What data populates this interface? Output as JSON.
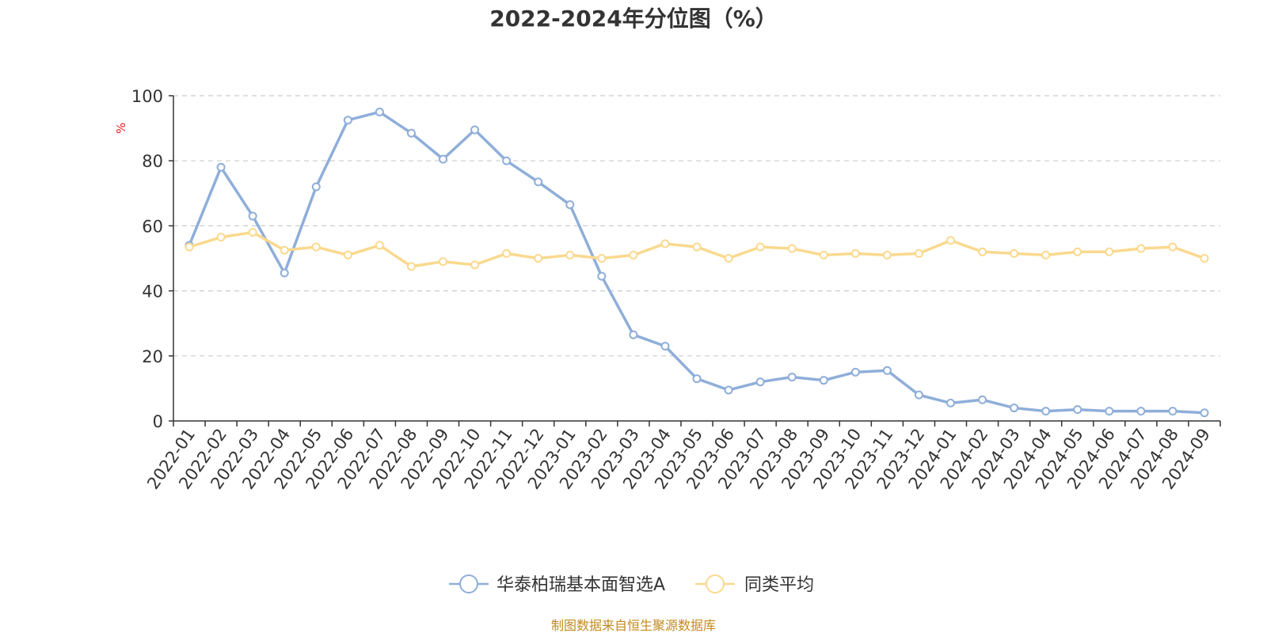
{
  "source_note": "制图数据来自恒生聚源数据库",
  "colors": {
    "series_a": "#8faed9",
    "series_b": "#fad98e",
    "source": "#c28a1e",
    "unit": "#e02020",
    "axis": "#333333",
    "grid": "#cccccc"
  },
  "chart_data": {
    "type": "line",
    "title": "2022-2024年分位图（%）",
    "ylabel": "%",
    "xlabel": "",
    "ylim": [
      0,
      100
    ],
    "yticks": [
      0,
      20,
      40,
      60,
      80,
      100
    ],
    "grid": true,
    "legend_position": "bottom-center",
    "categories": [
      "2022-01",
      "2022-02",
      "2022-03",
      "2022-04",
      "2022-05",
      "2022-06",
      "2022-07",
      "2022-08",
      "2022-09",
      "2022-10",
      "2022-11",
      "2022-12",
      "2023-01",
      "2023-02",
      "2023-03",
      "2023-04",
      "2023-05",
      "2023-06",
      "2023-07",
      "2023-08",
      "2023-09",
      "2023-10",
      "2023-11",
      "2023-12",
      "2024-01",
      "2024-02",
      "2024-03",
      "2024-04",
      "2024-05",
      "2024-06",
      "2024-07",
      "2024-08",
      "2024-09"
    ],
    "series": [
      {
        "name": "华泰柏瑞基本面智选A",
        "color": "#8faed9",
        "values": [
          54,
          78,
          63,
          45.5,
          72,
          92.5,
          95,
          88.5,
          80.5,
          89.5,
          80,
          73.5,
          66.5,
          44.5,
          26.5,
          23,
          13,
          9.5,
          12,
          13.5,
          12.5,
          15,
          15.5,
          8,
          5.5,
          6.5,
          4,
          3,
          3.5,
          3,
          3,
          3,
          2.5
        ]
      },
      {
        "name": "同类平均",
        "color": "#fad98e",
        "values": [
          53.5,
          56.5,
          58,
          52.5,
          53.5,
          51,
          54,
          47.5,
          49,
          48,
          51.5,
          50,
          51,
          50,
          51,
          54.5,
          53.5,
          50,
          53.5,
          53,
          51,
          51.5,
          51,
          51.5,
          55.5,
          52,
          51.5,
          51,
          52,
          52,
          53,
          53.5,
          50
        ]
      }
    ]
  }
}
